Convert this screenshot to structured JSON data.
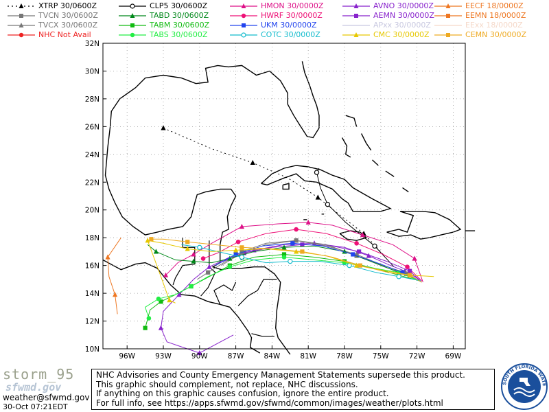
{
  "legend": [
    {
      "label": "XTRP 30/0600Z",
      "color": "#000000",
      "marker": "triangle",
      "dashed": true
    },
    {
      "label": "TVCN 30/0600Z",
      "color": "#777777",
      "marker": "square"
    },
    {
      "label": "TVCX 30/0600Z",
      "color": "#777777",
      "marker": "triangle"
    },
    {
      "label": "NHC Not Avail",
      "color": "#ee2222",
      "marker": "circle"
    },
    {
      "label": "CLP5 30/0600Z",
      "color": "#000000",
      "marker": "open-circle"
    },
    {
      "label": "TABD 30/0600Z",
      "color": "#00881a",
      "marker": "triangle"
    },
    {
      "label": "TABM 30/0600Z",
      "color": "#11bb11",
      "marker": "square"
    },
    {
      "label": "TABS 30/0600Z",
      "color": "#22ee44",
      "marker": "circle"
    },
    {
      "label": "HMON 30/0000Z",
      "color": "#dd1188",
      "marker": "triangle"
    },
    {
      "label": "HWRF 30/0000Z",
      "color": "#ee1177",
      "marker": "circle"
    },
    {
      "label": "UKM 30/0000Z",
      "color": "#2244ee",
      "marker": "square"
    },
    {
      "label": "COTC 30/0000Z",
      "color": "#11bbcc",
      "marker": "open-circle"
    },
    {
      "label": "AVNO 30/0000Z",
      "color": "#8822cc",
      "marker": "triangle"
    },
    {
      "label": "AEMN 30/0000Z",
      "color": "#8822cc",
      "marker": "square"
    },
    {
      "label": "APxx 30/0000Z",
      "color": "#c8c8e0",
      "marker": "none"
    },
    {
      "label": "CMC 30/0000Z",
      "color": "#e6c800",
      "marker": "triangle"
    },
    {
      "label": "EECF 18/0000Z",
      "color": "#ee7722",
      "marker": "triangle"
    },
    {
      "label": "EEMN 18/0000Z",
      "color": "#ee7722",
      "marker": "square"
    },
    {
      "label": "EExx 18/0000Z",
      "color": "#f5d8c8",
      "marker": "none"
    },
    {
      "label": "CEMN 30/0000Z",
      "color": "#eeaa22",
      "marker": "square"
    }
  ],
  "map": {
    "lat_labels": [
      "32N",
      "30N",
      "28N",
      "26N",
      "24N",
      "22N",
      "20N",
      "18N",
      "16N",
      "14N",
      "12N",
      "10N"
    ],
    "lon_labels": [
      "96W",
      "93W",
      "90W",
      "87W",
      "84W",
      "81W",
      "78W",
      "75W",
      "72W",
      "69W"
    ],
    "lat_range": [
      10,
      32
    ],
    "lon_range": [
      -98,
      -68
    ]
  },
  "tracks": [
    {
      "name": "XTRP",
      "color": "#000000",
      "dash": "2,4",
      "marker": "triangle",
      "points": [
        [
          -74.8,
          16.8
        ],
        [
          -76.4,
          18.3
        ],
        [
          -78.2,
          19.5
        ],
        [
          -80.2,
          20.9
        ],
        [
          -82.7,
          22.3
        ],
        [
          -85.6,
          23.4
        ],
        [
          -89.0,
          24.4
        ],
        [
          -93.0,
          25.9
        ]
      ]
    },
    {
      "name": "CLP5",
      "color": "#000000",
      "marker": "open-circle",
      "points": [
        [
          -73.9,
          15.9
        ],
        [
          -75.5,
          17.4
        ],
        [
          -77.9,
          19.1
        ],
        [
          -79.4,
          20.4
        ],
        [
          -80.0,
          21.6
        ],
        [
          -80.3,
          22.7
        ],
        [
          -80.1,
          23.0
        ]
      ]
    },
    {
      "name": "HMON",
      "color": "#dd1188",
      "marker": "triangle",
      "points": [
        [
          -71.5,
          14.8
        ],
        [
          -72.2,
          16.5
        ],
        [
          -74.0,
          17.5
        ],
        [
          -76.5,
          18.2
        ],
        [
          -79.0,
          18.9
        ],
        [
          -81.0,
          19.1
        ],
        [
          -83.5,
          19.0
        ],
        [
          -86.5,
          18.8
        ],
        [
          -89.0,
          17.6
        ],
        [
          -90.5,
          16.8
        ],
        [
          -91.8,
          16.2
        ],
        [
          -92.8,
          15.3
        ]
      ]
    },
    {
      "name": "HWRF",
      "color": "#ee1177",
      "marker": "circle",
      "points": [
        [
          -71.6,
          14.9
        ],
        [
          -72.8,
          15.9
        ],
        [
          -74.8,
          16.8
        ],
        [
          -77.0,
          17.6
        ],
        [
          -79.5,
          18.3
        ],
        [
          -82.0,
          18.6
        ],
        [
          -84.5,
          18.3
        ],
        [
          -86.8,
          17.7
        ],
        [
          -88.5,
          16.9
        ],
        [
          -89.7,
          16.5
        ]
      ]
    },
    {
      "name": "AVNO",
      "color": "#8822cc",
      "marker": "triangle",
      "points": [
        [
          -71.8,
          15.0
        ],
        [
          -73.0,
          15.6
        ],
        [
          -74.2,
          16.0
        ],
        [
          -76.0,
          16.7
        ],
        [
          -78.0,
          17.3
        ],
        [
          -80.5,
          17.6
        ],
        [
          -83.0,
          17.5
        ],
        [
          -85.5,
          17.1
        ],
        [
          -87.5,
          16.6
        ],
        [
          -89.2,
          15.9
        ],
        [
          -90.5,
          15.0
        ],
        [
          -91.7,
          13.9
        ],
        [
          -93.0,
          12.7
        ],
        [
          -93.2,
          11.5
        ],
        [
          -92.7,
          10.5
        ],
        [
          -90.0,
          9.7
        ],
        [
          -87.2,
          11.0
        ]
      ]
    },
    {
      "name": "AEMN",
      "color": "#8822cc",
      "marker": "square",
      "points": [
        [
          -71.6,
          14.8
        ],
        [
          -72.6,
          15.6
        ],
        [
          -74.5,
          16.3
        ],
        [
          -76.8,
          17.0
        ],
        [
          -79.0,
          17.4
        ],
        [
          -81.5,
          17.5
        ],
        [
          -84.0,
          17.3
        ],
        [
          -86.3,
          16.9
        ],
        [
          -88.3,
          16.2
        ]
      ]
    },
    {
      "name": "TVCN",
      "color": "#777777",
      "marker": "square",
      "points": [
        [
          -71.6,
          14.8
        ],
        [
          -72.9,
          15.4
        ],
        [
          -74.7,
          15.9
        ],
        [
          -77.0,
          16.7
        ],
        [
          -79.5,
          17.5
        ],
        [
          -82.0,
          17.8
        ],
        [
          -84.5,
          17.6
        ],
        [
          -86.5,
          17.0
        ],
        [
          -88.0,
          16.2
        ],
        [
          -89.3,
          15.5
        ],
        [
          -90.2,
          15.0
        ]
      ]
    },
    {
      "name": "TVCX",
      "color": "#777777",
      "marker": "triangle",
      "points": [
        [
          -71.6,
          14.8
        ],
        [
          -73.0,
          15.5
        ],
        [
          -74.8,
          16.0
        ],
        [
          -77.0,
          16.8
        ],
        [
          -79.5,
          17.4
        ],
        [
          -82.0,
          17.8
        ],
        [
          -84.5,
          17.5
        ],
        [
          -86.5,
          16.9
        ],
        [
          -88.2,
          16.0
        ]
      ]
    },
    {
      "name": "TABD",
      "color": "#00881a",
      "marker": "triangle",
      "points": [
        [
          -71.8,
          14.9
        ],
        [
          -73.5,
          15.5
        ],
        [
          -75.5,
          16.2
        ],
        [
          -78.0,
          17.0
        ],
        [
          -80.5,
          17.4
        ],
        [
          -83.0,
          17.3
        ],
        [
          -85.5,
          17.0
        ],
        [
          -87.5,
          16.5
        ],
        [
          -89.0,
          16.2
        ],
        [
          -90.5,
          16.3
        ],
        [
          -92.0,
          16.4
        ],
        [
          -93.6,
          17.0
        ],
        [
          -94.3,
          17.5
        ]
      ]
    },
    {
      "name": "TABM",
      "color": "#11bb11",
      "marker": "square",
      "points": [
        [
          -71.8,
          14.9
        ],
        [
          -73.5,
          15.3
        ],
        [
          -75.5,
          15.8
        ],
        [
          -78.0,
          16.3
        ],
        [
          -80.5,
          16.6
        ],
        [
          -83.0,
          16.8
        ],
        [
          -85.5,
          16.6
        ],
        [
          -87.5,
          16.0
        ],
        [
          -89.2,
          15.2
        ],
        [
          -90.7,
          14.5
        ],
        [
          -92.0,
          13.9
        ],
        [
          -93.2,
          13.4
        ],
        [
          -94.1,
          12.8
        ],
        [
          -94.5,
          11.5
        ]
      ]
    },
    {
      "name": "TABS",
      "color": "#22ee44",
      "marker": "circle",
      "points": [
        [
          -71.8,
          14.9
        ],
        [
          -73.5,
          15.5
        ],
        [
          -75.5,
          15.8
        ],
        [
          -78.0,
          16.2
        ],
        [
          -80.5,
          16.4
        ],
        [
          -83.0,
          16.6
        ],
        [
          -85.5,
          16.4
        ],
        [
          -87.5,
          15.9
        ],
        [
          -89.3,
          15.2
        ],
        [
          -90.7,
          14.5
        ],
        [
          -92.0,
          13.9
        ],
        [
          -93.4,
          13.6
        ],
        [
          -94.5,
          13.0
        ],
        [
          -94.2,
          12.2
        ]
      ]
    },
    {
      "name": "UKM",
      "color": "#2244ee",
      "marker": "square",
      "points": [
        [
          -71.7,
          14.9
        ],
        [
          -73.2,
          15.5
        ],
        [
          -75.0,
          16.1
        ],
        [
          -77.3,
          16.8
        ],
        [
          -79.8,
          17.4
        ],
        [
          -82.3,
          17.6
        ],
        [
          -84.8,
          17.4
        ],
        [
          -87.0,
          16.8
        ],
        [
          -88.7,
          16.0
        ]
      ]
    },
    {
      "name": "COTC",
      "color": "#11bbcc",
      "marker": "open-circle",
      "points": [
        [
          -71.7,
          14.9
        ],
        [
          -73.5,
          15.2
        ],
        [
          -75.4,
          15.5
        ],
        [
          -77.6,
          16.0
        ],
        [
          -80.0,
          16.3
        ],
        [
          -82.5,
          16.3
        ],
        [
          -84.5,
          16.2
        ],
        [
          -86.5,
          16.6
        ],
        [
          -88.5,
          17.0
        ],
        [
          -90.0,
          17.3
        ],
        [
          -91.5,
          17.5
        ]
      ]
    },
    {
      "name": "CMC",
      "color": "#e6c800",
      "marker": "triangle",
      "points": [
        [
          -70.6,
          15.2
        ],
        [
          -72.5,
          15.3
        ],
        [
          -74.5,
          15.6
        ],
        [
          -77.0,
          16.0
        ],
        [
          -79.5,
          16.7
        ],
        [
          -82.0,
          17.0
        ],
        [
          -84.5,
          17.2
        ],
        [
          -87.0,
          17.1
        ],
        [
          -89.0,
          17.0
        ],
        [
          -91.0,
          17.2
        ],
        [
          -93.0,
          17.6
        ],
        [
          -94.3,
          17.8
        ],
        [
          -93.2,
          15.2
        ],
        [
          -92.5,
          13.5
        ],
        [
          -92.0,
          13.3
        ]
      ]
    },
    {
      "name": "CEMN",
      "color": "#eeaa22",
      "marker": "square",
      "points": [
        [
          -71.6,
          14.8
        ],
        [
          -72.6,
          15.3
        ],
        [
          -74.4,
          15.5
        ],
        [
          -76.7,
          16.0
        ],
        [
          -79.0,
          16.6
        ],
        [
          -81.5,
          17.0
        ],
        [
          -84.0,
          17.2
        ],
        [
          -86.5,
          17.3
        ],
        [
          -88.8,
          17.5
        ],
        [
          -91.0,
          17.7
        ],
        [
          -93.0,
          17.9
        ],
        [
          -94.0,
          17.9
        ]
      ]
    },
    {
      "name": "EECF",
      "color": "#ee7722",
      "marker": "triangle",
      "points": [
        [
          -96.5,
          18.0
        ],
        [
          -97.6,
          16.6
        ],
        [
          -97.5,
          15.2
        ],
        [
          -97.0,
          13.9
        ],
        [
          -96.8,
          12.5
        ]
      ]
    }
  ],
  "footer": {
    "brand_name": "storm_95",
    "brand_site": "sfwmd.gov",
    "email": "weather@sfwmd.gov",
    "timestamp": "30-Oct 07:21EDT",
    "disclaimer_lines": [
      "NHC Advisories and County Emergency Management Statements supersede this product.",
      "This graphic should complement, not replace, NHC discussions.",
      "If anything on this graphic causes confusion, ignore the entire product.",
      "For full info, see  https://apps.sfwmd.gov/sfwmd/common/images/weather/plots.html"
    ],
    "seal_text": "SOUTH FLORIDA WATER MANAGEMENT DISTRICT"
  }
}
